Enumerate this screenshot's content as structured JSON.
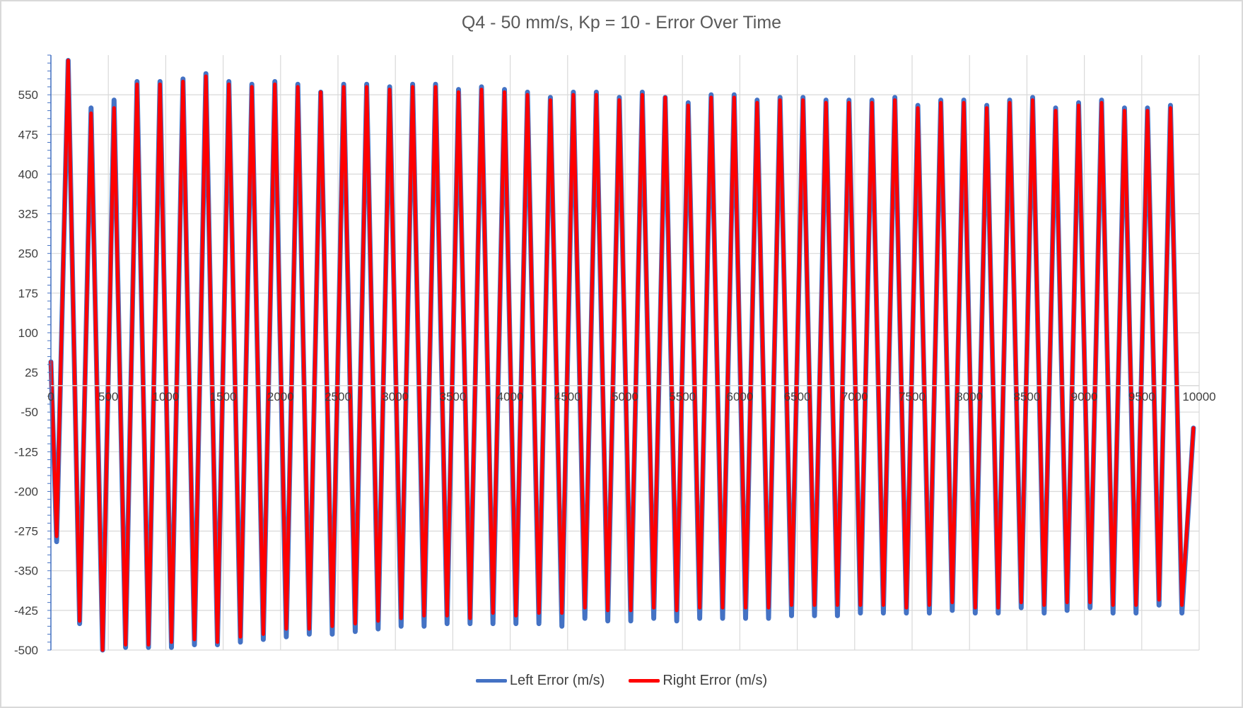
{
  "chart_data": {
    "type": "line",
    "title": "Q4 - 50 mm/s, Kp = 10 - Error Over Time",
    "xlabel": "",
    "ylabel": "",
    "xlim": [
      0,
      10000
    ],
    "ylim": [
      -500,
      625
    ],
    "x_ticks": [
      0,
      500,
      1000,
      1500,
      2000,
      2500,
      3000,
      3500,
      4000,
      4500,
      5000,
      5500,
      6000,
      6500,
      7000,
      7500,
      8000,
      8500,
      9000,
      9500,
      10000
    ],
    "x_tick_labels": [
      "0",
      "500",
      "1000",
      "1500",
      "2000",
      "2500",
      "3000",
      "3500",
      "4000",
      "4500",
      "5000",
      "5500",
      "6000",
      "6500",
      "7000",
      "7500",
      "8000",
      "8500",
      "9000",
      "9500",
      "10000"
    ],
    "y_ticks": [
      550,
      475,
      400,
      325,
      250,
      175,
      100,
      25,
      -50,
      -125,
      -200,
      -275,
      -350,
      -425,
      -500
    ],
    "y_tick_labels": [
      "550",
      "475",
      "400",
      "325",
      "250",
      "175",
      "100",
      "25",
      "-50",
      "-125",
      "-200",
      "-275",
      "-350",
      "-425",
      "-500"
    ],
    "grid": true,
    "legend_position": "bottom",
    "series": [
      {
        "name": "Left Error (m/s)",
        "color": "#4472c4",
        "x": [
          0,
          50,
          150,
          250,
          350,
          450,
          550,
          650,
          750,
          850,
          950,
          1050,
          1150,
          1250,
          1350,
          1450,
          1550,
          1650,
          1750,
          1850,
          1950,
          2050,
          2150,
          2250,
          2350,
          2450,
          2550,
          2650,
          2750,
          2850,
          2950,
          3050,
          3150,
          3250,
          3350,
          3450,
          3550,
          3650,
          3750,
          3850,
          3950,
          4050,
          4150,
          4250,
          4350,
          4450,
          4550,
          4650,
          4750,
          4850,
          4950,
          5050,
          5150,
          5250,
          5350,
          5450,
          5550,
          5650,
          5750,
          5850,
          5950,
          6050,
          6150,
          6250,
          6350,
          6450,
          6550,
          6650,
          6750,
          6850,
          6950,
          7050,
          7150,
          7250,
          7350,
          7450,
          7550,
          7650,
          7750,
          7850,
          7950,
          8050,
          8150,
          8250,
          8350,
          8450,
          8550,
          8650,
          8750,
          8850,
          8950,
          9050,
          9150,
          9250,
          9350,
          9450,
          9550,
          9650,
          9750,
          9850,
          9950
        ],
        "y": [
          45,
          -295,
          615,
          -450,
          525,
          -500,
          540,
          -495,
          575,
          -495,
          575,
          -495,
          580,
          -490,
          590,
          -490,
          575,
          -485,
          570,
          -480,
          575,
          -475,
          570,
          -470,
          555,
          -470,
          570,
          -465,
          570,
          -460,
          565,
          -455,
          570,
          -455,
          570,
          -450,
          560,
          -450,
          565,
          -450,
          560,
          -450,
          555,
          -450,
          545,
          -455,
          555,
          -440,
          555,
          -445,
          545,
          -445,
          555,
          -440,
          545,
          -445,
          535,
          -440,
          550,
          -440,
          550,
          -440,
          540,
          -440,
          545,
          -435,
          545,
          -435,
          540,
          -435,
          540,
          -430,
          540,
          -430,
          545,
          -430,
          530,
          -430,
          540,
          -425,
          540,
          -430,
          530,
          -430,
          540,
          -420,
          545,
          -430,
          525,
          -425,
          535,
          -420,
          540,
          -430,
          525,
          -430,
          525,
          -415,
          530,
          -430,
          -80
        ]
      },
      {
        "name": "Right Error (m/s)",
        "color": "#ff0000",
        "x": [
          0,
          50,
          150,
          250,
          350,
          450,
          550,
          650,
          750,
          850,
          950,
          1050,
          1150,
          1250,
          1350,
          1450,
          1550,
          1650,
          1750,
          1850,
          1950,
          2050,
          2150,
          2250,
          2350,
          2450,
          2550,
          2650,
          2750,
          2850,
          2950,
          3050,
          3150,
          3250,
          3350,
          3450,
          3550,
          3650,
          3750,
          3850,
          3950,
          4050,
          4150,
          4250,
          4350,
          4450,
          4550,
          4650,
          4750,
          4850,
          4950,
          5050,
          5150,
          5250,
          5350,
          5450,
          5550,
          5650,
          5750,
          5850,
          5950,
          6050,
          6150,
          6250,
          6350,
          6450,
          6550,
          6650,
          6750,
          6850,
          6950,
          7050,
          7150,
          7250,
          7350,
          7450,
          7550,
          7650,
          7750,
          7850,
          7950,
          8050,
          8150,
          8250,
          8350,
          8450,
          8550,
          8650,
          8750,
          8850,
          8950,
          9050,
          9150,
          9250,
          9350,
          9450,
          9550,
          9650,
          9750,
          9850,
          9950
        ],
        "y": [
          45,
          -285,
          615,
          -445,
          515,
          -500,
          525,
          -490,
          570,
          -490,
          570,
          -485,
          575,
          -480,
          585,
          -485,
          570,
          -475,
          565,
          -470,
          570,
          -460,
          565,
          -460,
          555,
          -455,
          565,
          -450,
          565,
          -445,
          560,
          -440,
          565,
          -435,
          565,
          -435,
          555,
          -440,
          560,
          -430,
          555,
          -435,
          550,
          -430,
          540,
          -430,
          550,
          -420,
          550,
          -425,
          540,
          -425,
          550,
          -420,
          545,
          -425,
          530,
          -420,
          545,
          -420,
          545,
          -420,
          535,
          -420,
          540,
          -415,
          540,
          -415,
          535,
          -415,
          535,
          -415,
          535,
          -415,
          540,
          -420,
          525,
          -415,
          535,
          -410,
          535,
          -420,
          525,
          -420,
          535,
          -410,
          540,
          -415,
          520,
          -410,
          530,
          -410,
          535,
          -415,
          520,
          -415,
          520,
          -405,
          525,
          -415,
          -80
        ]
      }
    ]
  },
  "legend": {
    "items": [
      {
        "label": "Left Error (m/s)",
        "color": "#4472c4"
      },
      {
        "label": "Right Error (m/s)",
        "color": "#ff0000"
      }
    ]
  }
}
